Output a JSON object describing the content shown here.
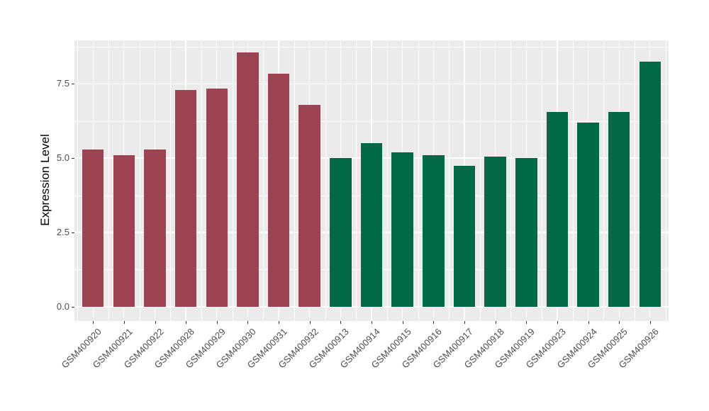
{
  "chart_data": {
    "type": "bar",
    "title": "",
    "xlabel": "",
    "ylabel": "Expression Level",
    "categories": [
      "GSM400920",
      "GSM400921",
      "GSM400922",
      "GSM400928",
      "GSM400929",
      "GSM400930",
      "GSM400931",
      "GSM400932",
      "GSM400913",
      "GSM400914",
      "GSM400915",
      "GSM400916",
      "GSM400917",
      "GSM400918",
      "GSM400919",
      "GSM400923",
      "GSM400924",
      "GSM400925",
      "GSM400926"
    ],
    "values": [
      5.3,
      5.1,
      5.3,
      7.3,
      7.35,
      8.55,
      7.85,
      6.8,
      5.0,
      5.5,
      5.2,
      5.1,
      4.75,
      5.05,
      5.0,
      6.55,
      6.2,
      6.55,
      8.25
    ],
    "groups": [
      "a",
      "a",
      "a",
      "a",
      "a",
      "a",
      "a",
      "a",
      "b",
      "b",
      "b",
      "b",
      "b",
      "b",
      "b",
      "b",
      "b",
      "b",
      "b"
    ],
    "group_colors": {
      "a": "#9D4352",
      "b": "#016946"
    },
    "ylim": [
      -0.48,
      8.96
    ],
    "yticks": [
      0.0,
      2.5,
      5.0,
      7.5
    ],
    "ytick_labels": [
      "0.0",
      "2.5",
      "5.0",
      "7.5"
    ],
    "yminor": [
      1.25,
      3.75,
      6.25,
      8.75
    ],
    "grid": true,
    "legend": "none",
    "bar_rel_width": 0.7,
    "panel_bg": "#EBEBEB",
    "grid_color": "#FFFFFF",
    "axis_text_color": "#4D4D4D",
    "axis_title_color": "#000000"
  }
}
